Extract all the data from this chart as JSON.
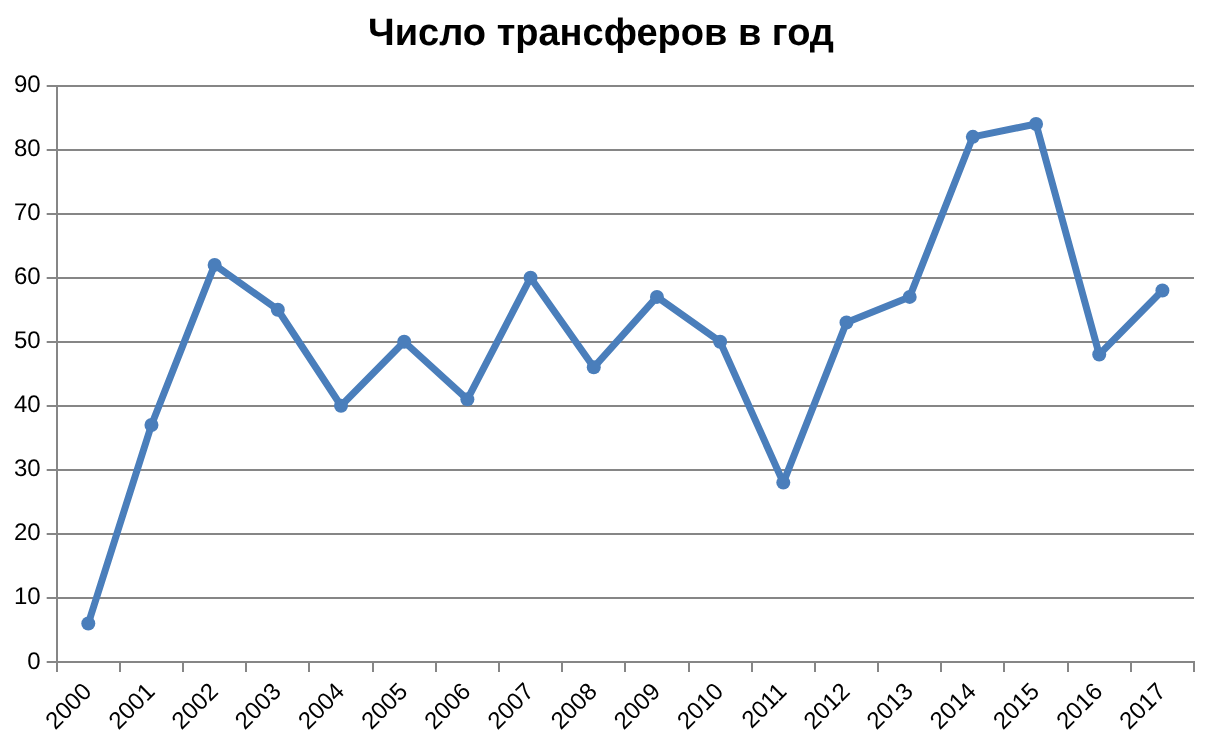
{
  "chart_data": {
    "type": "line",
    "title": "Число трансферов в год",
    "categories": [
      "2000",
      "2001",
      "2002",
      "2003",
      "2004",
      "2005",
      "2006",
      "2007",
      "2008",
      "2009",
      "2010",
      "2011",
      "2012",
      "2013",
      "2014",
      "2015",
      "2016",
      "2017"
    ],
    "series": [
      {
        "color": "#4a7ebb",
        "values": [
          6,
          37,
          62,
          55,
          40,
          50,
          41,
          60,
          46,
          57,
          50,
          28,
          53,
          57,
          82,
          84,
          48,
          58
        ]
      }
    ],
    "ylim": [
      0,
      90
    ],
    "yticks": [
      0,
      10,
      20,
      30,
      40,
      50,
      60,
      70,
      80,
      90
    ],
    "grid": "y",
    "legend": false,
    "marker": "circle",
    "line_style": "solid"
  }
}
